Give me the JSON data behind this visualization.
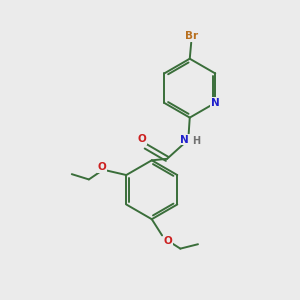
{
  "bg_color": "#ebebeb",
  "bond_color": "#3a6e3a",
  "atom_colors": {
    "Br": "#b87020",
    "N": "#2020cc",
    "O": "#cc2020",
    "H": "#707070",
    "C": "#3a6e3a"
  },
  "figsize": [
    3.0,
    3.0
  ],
  "dpi": 100,
  "lw": 1.4,
  "fontsize": 7.5
}
